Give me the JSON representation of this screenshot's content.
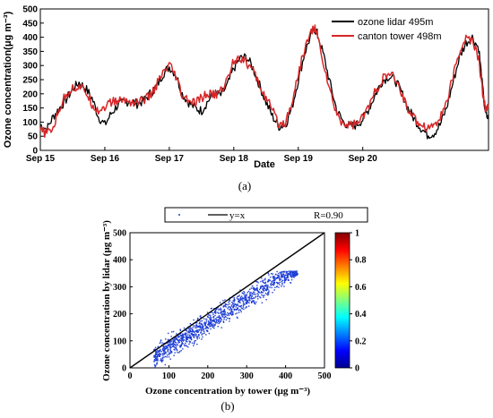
{
  "chart_data": [
    {
      "type": "line",
      "panel_label": "(a)",
      "xlabel": "Date",
      "ylabel": "Ozone concentration(μg m⁻³)",
      "x_tick_labels": [
        "Sep 15",
        "Sep 16",
        "Sep 17",
        "Sep 18",
        "Sep 19",
        "Sep 20"
      ],
      "y_ticks": [
        0,
        50,
        100,
        150,
        200,
        250,
        300,
        350,
        400,
        450,
        500
      ],
      "ylim": [
        0,
        500
      ],
      "x_unit": "days since Sep 15 00:00",
      "xlim": [
        0,
        6.95
      ],
      "legend_position": "top-right",
      "series": [
        {
          "name": "ozone lidar 495m",
          "color": "#000000",
          "points": [
            [
              0.0,
              90
            ],
            [
              0.1,
              75
            ],
            [
              0.2,
              120
            ],
            [
              0.3,
              150
            ],
            [
              0.4,
              180
            ],
            [
              0.5,
              215
            ],
            [
              0.6,
              240
            ],
            [
              0.7,
              220
            ],
            [
              0.8,
              185
            ],
            [
              0.9,
              120
            ],
            [
              1.0,
              90
            ],
            [
              1.1,
              130
            ],
            [
              1.2,
              160
            ],
            [
              1.3,
              170
            ],
            [
              1.4,
              175
            ],
            [
              1.5,
              165
            ],
            [
              1.6,
              175
            ],
            [
              1.7,
              200
            ],
            [
              1.8,
              225
            ],
            [
              1.9,
              270
            ],
            [
              2.0,
              295
            ],
            [
              2.1,
              270
            ],
            [
              2.2,
              200
            ],
            [
              2.3,
              170
            ],
            [
              2.4,
              150
            ],
            [
              2.5,
              140
            ],
            [
              2.6,
              175
            ],
            [
              2.7,
              200
            ],
            [
              2.8,
              195
            ],
            [
              2.9,
              230
            ],
            [
              3.0,
              290
            ],
            [
              3.1,
              325
            ],
            [
              3.2,
              330
            ],
            [
              3.3,
              290
            ],
            [
              3.4,
              230
            ],
            [
              3.5,
              170
            ],
            [
              3.6,
              120
            ],
            [
              3.7,
              85
            ],
            [
              3.8,
              90
            ],
            [
              3.9,
              150
            ],
            [
              4.0,
              250
            ],
            [
              4.1,
              345
            ],
            [
              4.2,
              410
            ],
            [
              4.25,
              430
            ],
            [
              4.3,
              410
            ],
            [
              4.4,
              330
            ],
            [
              4.5,
              230
            ],
            [
              4.6,
              140
            ],
            [
              4.7,
              100
            ],
            [
              4.8,
              85
            ],
            [
              4.9,
              90
            ],
            [
              5.0,
              110
            ],
            [
              5.1,
              150
            ],
            [
              5.2,
              200
            ],
            [
              5.3,
              245
            ],
            [
              5.4,
              262
            ],
            [
              5.5,
              250
            ],
            [
              5.6,
              205
            ],
            [
              5.7,
              150
            ],
            [
              5.8,
              110
            ],
            [
              5.9,
              80
            ],
            [
              6.0,
              55
            ],
            [
              6.1,
              60
            ],
            [
              6.2,
              90
            ],
            [
              6.3,
              150
            ],
            [
              6.4,
              240
            ],
            [
              6.5,
              330
            ],
            [
              6.6,
              380
            ],
            [
              6.7,
              400
            ],
            [
              6.8,
              360
            ],
            [
              6.85,
              240
            ],
            [
              6.9,
              130
            ],
            [
              6.95,
              110
            ]
          ]
        },
        {
          "name": "canton tower 498m",
          "color": "#d62728",
          "points": [
            [
              0.0,
              70
            ],
            [
              0.1,
              60
            ],
            [
              0.2,
              80
            ],
            [
              0.3,
              150
            ],
            [
              0.4,
              200
            ],
            [
              0.5,
              220
            ],
            [
              0.6,
              225
            ],
            [
              0.7,
              210
            ],
            [
              0.8,
              165
            ],
            [
              0.9,
              140
            ],
            [
              1.0,
              155
            ],
            [
              1.1,
              170
            ],
            [
              1.2,
              175
            ],
            [
              1.3,
              178
            ],
            [
              1.4,
              172
            ],
            [
              1.5,
              170
            ],
            [
              1.6,
              180
            ],
            [
              1.7,
              190
            ],
            [
              1.8,
              230
            ],
            [
              1.9,
              270
            ],
            [
              2.0,
              300
            ],
            [
              2.1,
              260
            ],
            [
              2.2,
              190
            ],
            [
              2.3,
              175
            ],
            [
              2.4,
              165
            ],
            [
              2.5,
              185
            ],
            [
              2.6,
              200
            ],
            [
              2.7,
              195
            ],
            [
              2.8,
              210
            ],
            [
              2.9,
              250
            ],
            [
              3.0,
              320
            ],
            [
              3.1,
              330
            ],
            [
              3.2,
              310
            ],
            [
              3.3,
              280
            ],
            [
              3.4,
              230
            ],
            [
              3.5,
              185
            ],
            [
              3.6,
              140
            ],
            [
              3.7,
              90
            ],
            [
              3.8,
              100
            ],
            [
              3.9,
              170
            ],
            [
              4.0,
              270
            ],
            [
              4.1,
              360
            ],
            [
              4.2,
              420
            ],
            [
              4.25,
              435
            ],
            [
              4.3,
              400
            ],
            [
              4.4,
              300
            ],
            [
              4.5,
              200
            ],
            [
              4.6,
              125
            ],
            [
              4.7,
              95
            ],
            [
              4.8,
              90
            ],
            [
              4.9,
              95
            ],
            [
              5.0,
              115
            ],
            [
              5.1,
              160
            ],
            [
              5.2,
              210
            ],
            [
              5.3,
              250
            ],
            [
              5.4,
              268
            ],
            [
              5.5,
              255
            ],
            [
              5.6,
              200
            ],
            [
              5.7,
              150
            ],
            [
              5.8,
              110
            ],
            [
              5.9,
              95
            ],
            [
              6.0,
              80
            ],
            [
              6.1,
              90
            ],
            [
              6.2,
              115
            ],
            [
              6.3,
              170
            ],
            [
              6.4,
              260
            ],
            [
              6.5,
              350
            ],
            [
              6.6,
              395
            ],
            [
              6.7,
              390
            ],
            [
              6.8,
              320
            ],
            [
              6.85,
              220
            ],
            [
              6.9,
              150
            ],
            [
              6.95,
              150
            ]
          ]
        }
      ]
    },
    {
      "type": "scatter",
      "panel_label": "(b)",
      "xlabel": "Ozone concentration by tower (μg m⁻³)",
      "ylabel": "Ozone concentration by lidar (μg m⁻³)",
      "xlim": [
        0,
        500
      ],
      "ylim": [
        0,
        500
      ],
      "x_ticks": [
        0,
        100,
        200,
        300,
        400,
        500
      ],
      "y_ticks": [
        0,
        100,
        200,
        300,
        400,
        500
      ],
      "reference_line": "y=x",
      "legend": {
        "marker_label": "",
        "line_label": "y=x",
        "stat_label": "R=0.90"
      },
      "colorbar": {
        "min": 0,
        "max": 1,
        "ticks": [
          "0",
          "0.2",
          "0.4",
          "0.6",
          "0.8",
          "1"
        ]
      },
      "point_color": "#1f3fd6",
      "point_count": 1200,
      "fit": {
        "slope": 0.9,
        "intercept": -10,
        "x_range": [
          60,
          430
        ]
      }
    }
  ]
}
